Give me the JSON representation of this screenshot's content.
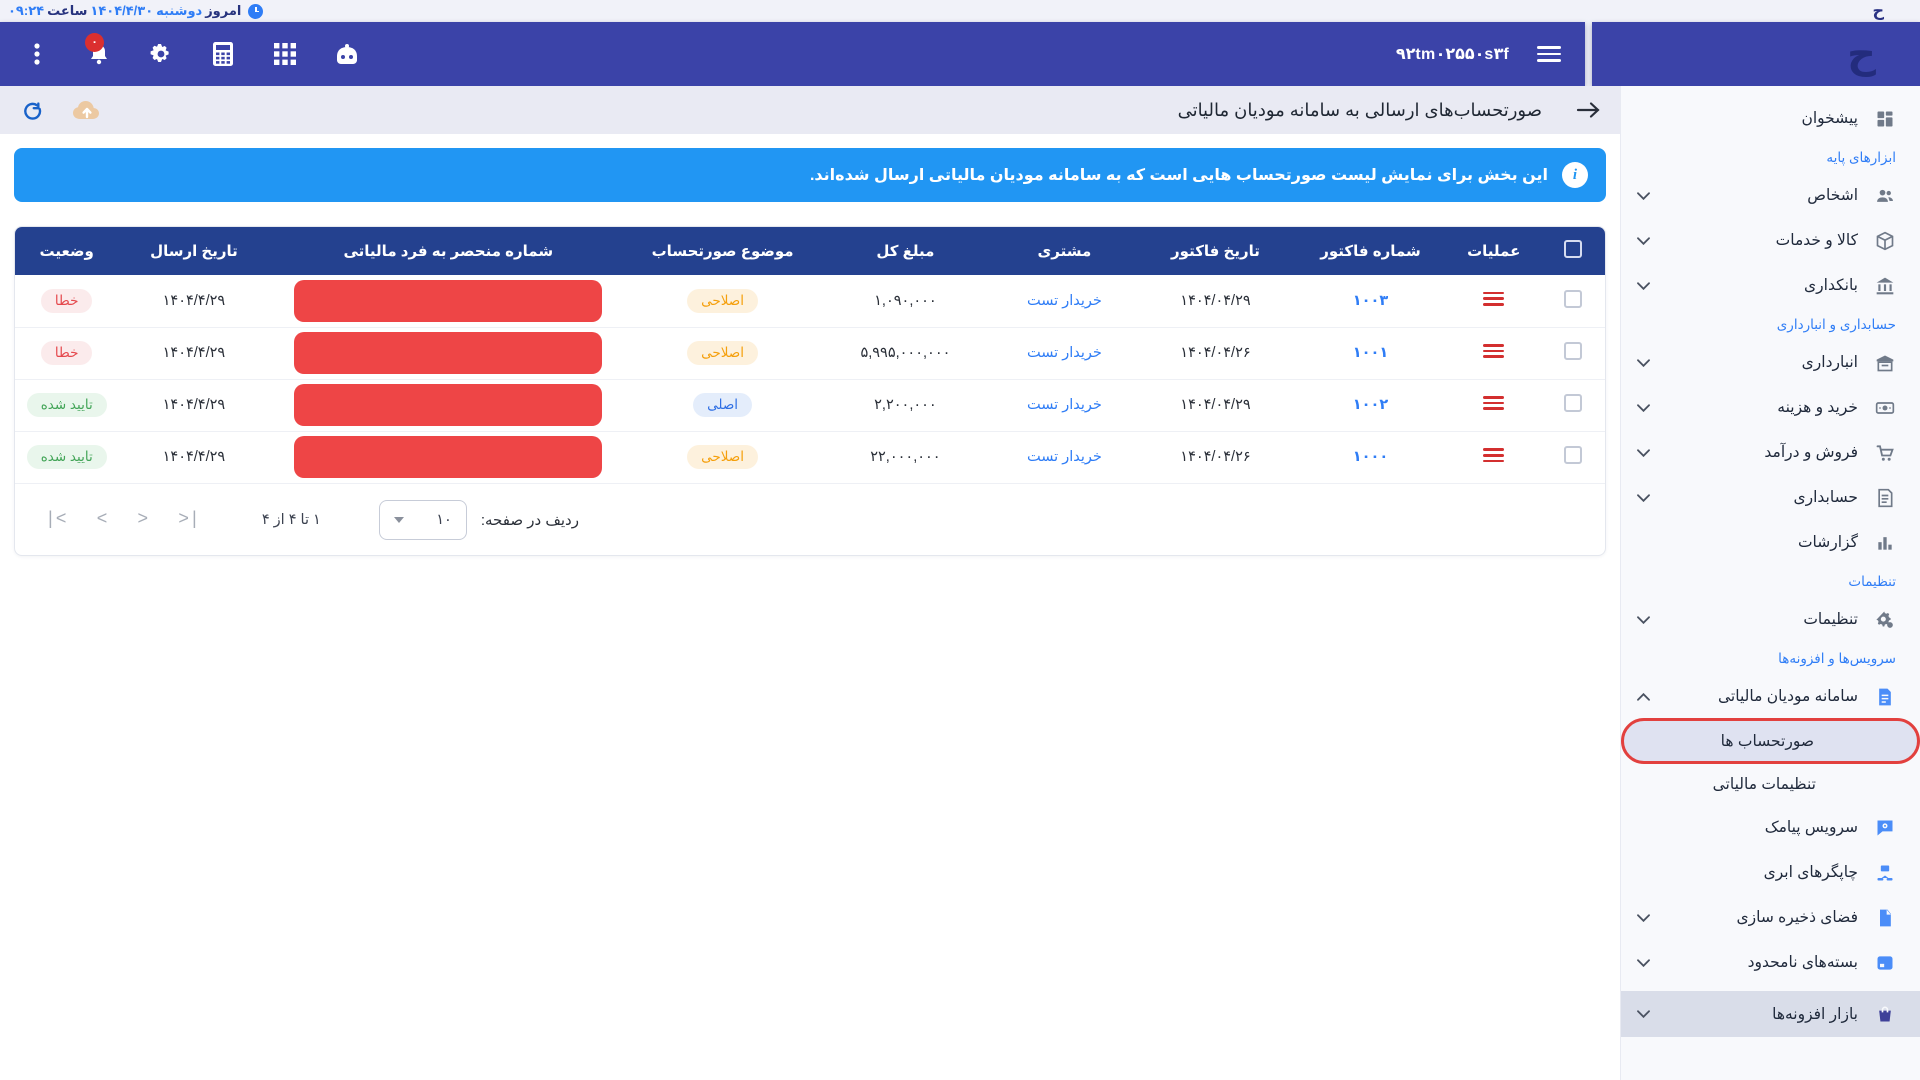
{
  "top_strip": {
    "today_label": "امروز",
    "weekday": "دوشنبه",
    "date": "۱۴۰۴/۴/۳۰",
    "time_label": "ساعت",
    "time": "۰۹:۲۴",
    "logo": "ح"
  },
  "navbar": {
    "company_id": "۹۲tm۰۲۵۵۰s۳f",
    "bell_badge": "۰",
    "logo": "ح",
    "icons": [
      "kebab-menu-icon",
      "notifications-bell-icon",
      "settings-gear-icon",
      "calculator-icon",
      "apps-grid-icon",
      "assistant-robot-icon"
    ]
  },
  "page": {
    "title": "صورتحساب‌های ارسالی به سامانه مودیان مالیاتی",
    "banner_text": "این بخش برای نمایش لیست صورتحساب هایی است که به سامانه مودیان مالیاتی ارسال شده‌اند."
  },
  "table": {
    "columns": [
      "عملیات",
      "شماره فاکتور",
      "تاریخ فاکتور",
      "مشتری",
      "مبلغ کل",
      "موضوع صورتحساب",
      "شماره منحصر به فرد مالیاتی",
      "تاریخ ارسال",
      "وضعیت"
    ],
    "rows": [
      {
        "invoice_no": "۱۰۰۳",
        "invoice_date": "۱۴۰۴/۰۴/۲۹",
        "customer": "خریدار تست",
        "total": "۱,۰۹۰,۰۰۰",
        "subject": "اصلاحی",
        "subject_type": "amended",
        "tax_uid_redacted": true,
        "send_date": "۱۴۰۴/۴/۲۹",
        "status": "خطا",
        "status_type": "error"
      },
      {
        "invoice_no": "۱۰۰۱",
        "invoice_date": "۱۴۰۴/۰۴/۲۶",
        "customer": "خریدار تست",
        "total": "۵,۹۹۵,۰۰۰,۰۰۰",
        "subject": "اصلاحی",
        "subject_type": "amended",
        "tax_uid_redacted": true,
        "send_date": "۱۴۰۴/۴/۲۹",
        "status": "خطا",
        "status_type": "error"
      },
      {
        "invoice_no": "۱۰۰۲",
        "invoice_date": "۱۴۰۴/۰۴/۲۹",
        "customer": "خریدار تست",
        "total": "۲,۲۰۰,۰۰۰",
        "subject": "اصلی",
        "subject_type": "original",
        "tax_uid_redacted": true,
        "send_date": "۱۴۰۴/۴/۲۹",
        "status": "تایید شده",
        "status_type": "approved"
      },
      {
        "invoice_no": "۱۰۰۰",
        "invoice_date": "۱۴۰۴/۰۴/۲۶",
        "customer": "خریدار تست",
        "total": "۲۲,۰۰۰,۰۰۰",
        "subject": "اصلاحی",
        "subject_type": "amended",
        "tax_uid_redacted": true,
        "send_date": "۱۴۰۴/۴/۲۹",
        "status": "تایید شده",
        "status_type": "approved"
      }
    ]
  },
  "pagination": {
    "rows_per_page_label": "ردیف در صفحه:",
    "rows_per_page": "۱۰",
    "range_label": "۱ تا ۴ از ۴"
  },
  "sidebar": {
    "items": [
      {
        "type": "item",
        "label": "پیشخوان",
        "icon": "dashboard-icon",
        "icon_color": "gray"
      },
      {
        "type": "section",
        "label": "ابزارهای پایه"
      },
      {
        "type": "item",
        "label": "اشخاص",
        "icon": "people-icon",
        "icon_color": "gray",
        "chevron": "down"
      },
      {
        "type": "item",
        "label": "کالا و خدمات",
        "icon": "goods-box-icon",
        "icon_color": "gray",
        "chevron": "down"
      },
      {
        "type": "item",
        "label": "بانکداری",
        "icon": "bank-icon",
        "icon_color": "gray",
        "chevron": "down"
      },
      {
        "type": "section",
        "label": "حسابداری و انبارداری"
      },
      {
        "type": "item",
        "label": "انبارداری",
        "icon": "warehouse-icon",
        "icon_color": "gray",
        "chevron": "down"
      },
      {
        "type": "item",
        "label": "خرید و هزینه",
        "icon": "cash-icon",
        "icon_color": "gray",
        "chevron": "down"
      },
      {
        "type": "item",
        "label": "فروش و درآمد",
        "icon": "cart-icon",
        "icon_color": "gray",
        "chevron": "down"
      },
      {
        "type": "item",
        "label": "حسابداری",
        "icon": "ledger-icon",
        "icon_color": "gray",
        "chevron": "down"
      },
      {
        "type": "item",
        "label": "گزارشات",
        "icon": "bar-chart-icon",
        "icon_color": "gray"
      },
      {
        "type": "section",
        "label": "تنظیمات"
      },
      {
        "type": "item",
        "label": "تنظیمات",
        "icon": "gears-icon",
        "icon_color": "gray",
        "chevron": "down"
      },
      {
        "type": "section",
        "label": "سرویس‌ها و افزونه‌ها"
      },
      {
        "type": "item",
        "label": "سامانه مودیان مالیاتی",
        "icon": "tax-document-icon",
        "icon_color": "blue",
        "chevron": "up"
      },
      {
        "type": "subitem",
        "label": "صورتحساب ها",
        "active": true,
        "annotated": true
      },
      {
        "type": "subitem",
        "label": "تنظیمات مالیاتی"
      },
      {
        "type": "item",
        "label": "سرویس پیامک",
        "icon": "sms-service-icon",
        "icon_color": "blue"
      },
      {
        "type": "item",
        "label": "چاپگرهای ابری",
        "icon": "cloud-printer-icon",
        "icon_color": "blue"
      },
      {
        "type": "item",
        "label": "فضای ذخیره سازی",
        "icon": "storage-icon",
        "icon_color": "blue",
        "chevron": "down"
      },
      {
        "type": "item",
        "label": "بسته‌های نامحدود",
        "icon": "packages-icon",
        "icon_color": "blue",
        "chevron": "down"
      },
      {
        "type": "item",
        "label": "بازار افزونه‌ها",
        "icon": "addons-bag-icon",
        "icon_color": "indigo",
        "chevron": "down",
        "highlight": true
      }
    ]
  },
  "colors": {
    "navbar": "#3b43a8",
    "table_header": "#24418f",
    "banner": "#2196f3",
    "redaction": "#ee4546",
    "link": "#2f7df6",
    "error": "#e5484d",
    "approved": "#43a558",
    "amended": "#f59f0b",
    "original": "#2f6fe4",
    "annotation": "#e2403e"
  }
}
